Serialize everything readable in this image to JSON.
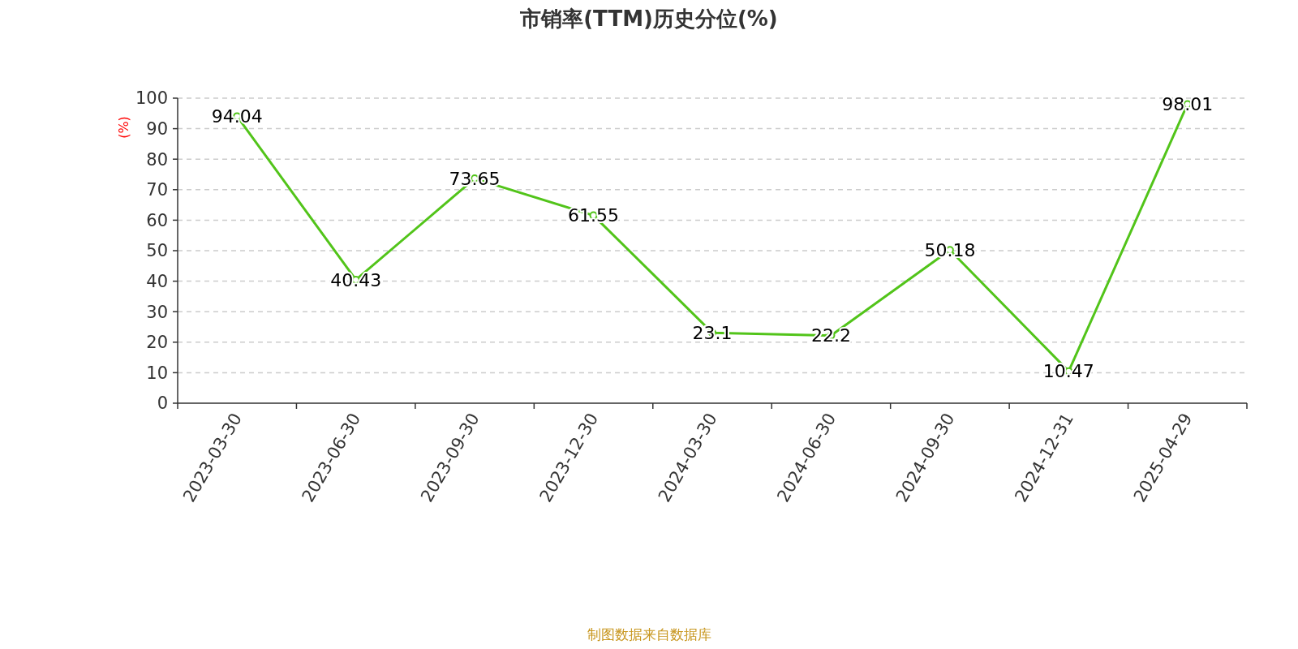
{
  "chart_data": {
    "type": "line",
    "title": "市销率(TTM)历史分位(%)",
    "ylabel": "(%)",
    "categories": [
      "2023-03-30",
      "2023-06-30",
      "2023-09-30",
      "2023-12-30",
      "2024-03-30",
      "2024-06-30",
      "2024-09-30",
      "2024-12-31",
      "2025-04-29"
    ],
    "series": [
      {
        "color": "#52c41a",
        "values": [
          94.04,
          40.43,
          73.65,
          61.55,
          23.1,
          22.2,
          50.18,
          10.47,
          98.01
        ]
      }
    ],
    "ylim": [
      0,
      100
    ],
    "yticks": [
      0,
      10,
      20,
      30,
      40,
      50,
      60,
      70,
      80,
      90,
      100
    ],
    "grid": "y",
    "marker": "circle",
    "data_labels": true,
    "annotations": [
      "制图数据来自数据库"
    ]
  }
}
